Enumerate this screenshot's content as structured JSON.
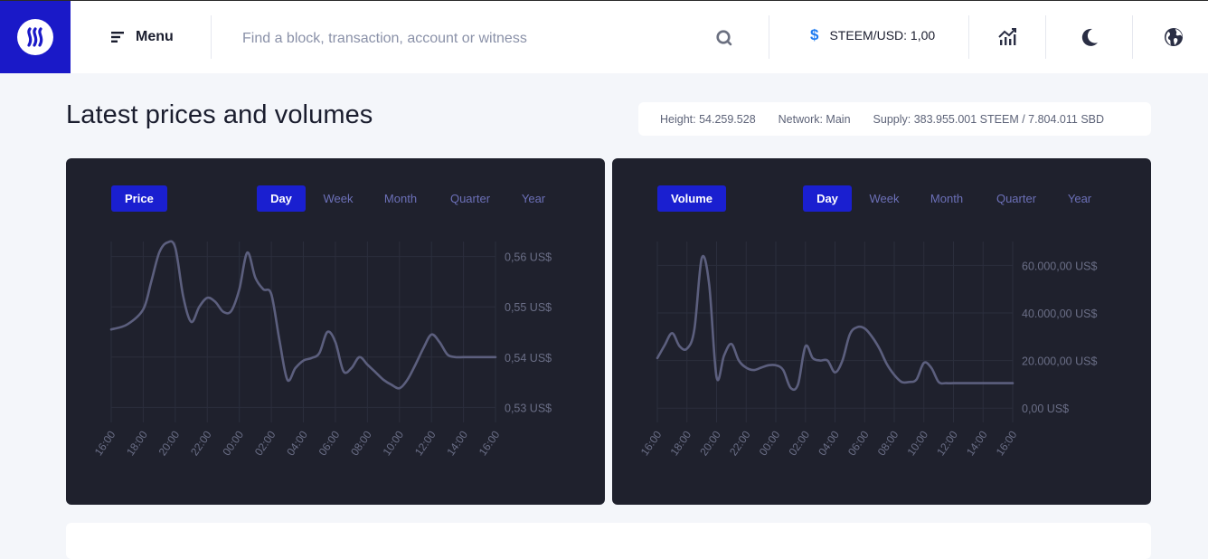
{
  "header": {
    "menu_label": "Menu",
    "search_placeholder": "Find a block, transaction, account or witness",
    "ticker_symbol": "$",
    "ticker_label": "STEEM/USD: 1,00"
  },
  "page": {
    "title": "Latest prices and volumes"
  },
  "network": {
    "height": "Height: 54.259.528",
    "network": "Network: Main",
    "supply": "Supply: 383.955.001 STEEM / 7.804.011 SBD"
  },
  "colors": {
    "accent": "#1a1fd0",
    "card_bg": "#1f212d",
    "line": "#5c5f7e",
    "tab_inactive": "#6c70b8"
  },
  "ranges": [
    "Day",
    "Week",
    "Month",
    "Quarter",
    "Year"
  ],
  "chart_data": [
    {
      "type": "line",
      "title": "Price",
      "active_range": "Day",
      "x_ticks": [
        "16:00",
        "18:00",
        "20:00",
        "22:00",
        "00:00",
        "02:00",
        "04:00",
        "06:00",
        "08:00",
        "10:00",
        "12:00",
        "14:00",
        "16:00"
      ],
      "y_ticks": [
        "0,56 US$",
        "0,55 US$",
        "0,54 US$",
        "0,53 US$"
      ],
      "y_tick_values": [
        0.56,
        0.55,
        0.54,
        0.53
      ],
      "ylim": [
        0.527,
        0.563
      ],
      "x": [
        0,
        0.5,
        1,
        1.25,
        1.5,
        1.75,
        2,
        2.25,
        2.5,
        2.75,
        3,
        3.25,
        3.5,
        3.75,
        4,
        4.25,
        4.5,
        4.75,
        5,
        5.25,
        5.5,
        5.75,
        6,
        6.25,
        6.5,
        6.75,
        7,
        7.25,
        7.5,
        7.75,
        8,
        8.25,
        8.5,
        8.75,
        9,
        9.25,
        9.5,
        9.75,
        10,
        10.25,
        10.5,
        10.75,
        11,
        11.25,
        11.5,
        11.75,
        12
      ],
      "values": [
        0.5455,
        0.5465,
        0.5495,
        0.555,
        0.5608,
        0.5628,
        0.5618,
        0.552,
        0.547,
        0.55,
        0.5518,
        0.551,
        0.549,
        0.5492,
        0.5535,
        0.5608,
        0.5558,
        0.5535,
        0.5525,
        0.5435,
        0.5355,
        0.5378,
        0.5393,
        0.5398,
        0.5408,
        0.545,
        0.543,
        0.5372,
        0.5378,
        0.54,
        0.5385,
        0.537,
        0.5355,
        0.5345,
        0.5338,
        0.5355,
        0.5385,
        0.5418,
        0.5445,
        0.543,
        0.5405,
        0.54,
        0.54,
        0.54,
        0.54,
        0.54,
        0.54
      ]
    },
    {
      "type": "line",
      "title": "Volume",
      "active_range": "Day",
      "x_ticks": [
        "16:00",
        "18:00",
        "20:00",
        "22:00",
        "00:00",
        "02:00",
        "04:00",
        "06:00",
        "08:00",
        "10:00",
        "12:00",
        "14:00",
        "16:00"
      ],
      "y_ticks": [
        "60.000,00 US$",
        "40.000,00 US$",
        "20.000,00 US$",
        "0,00 US$"
      ],
      "y_tick_values": [
        60000,
        40000,
        20000,
        0
      ],
      "ylim": [
        -6000,
        70000
      ],
      "x": [
        0,
        0.25,
        0.5,
        0.75,
        1,
        1.25,
        1.5,
        1.75,
        2,
        2.25,
        2.5,
        2.75,
        3,
        3.25,
        3.5,
        3.75,
        4,
        4.25,
        4.5,
        4.75,
        5,
        5.25,
        5.5,
        5.75,
        6,
        6.25,
        6.5,
        6.75,
        7,
        7.25,
        7.5,
        7.75,
        8,
        8.25,
        8.5,
        8.75,
        9,
        9.25,
        9.5,
        9.75,
        10,
        10.25,
        10.5,
        10.75,
        11,
        11.25,
        11.5,
        11.75,
        12
      ],
      "values": [
        21000,
        26500,
        31500,
        26000,
        25000,
        33000,
        63000,
        52000,
        13000,
        22000,
        27000,
        20000,
        17000,
        16000,
        17000,
        18000,
        18000,
        16000,
        8500,
        10000,
        26000,
        21000,
        20000,
        20000,
        15000,
        20000,
        31000,
        34000,
        33500,
        30000,
        25000,
        18500,
        14000,
        11000,
        11000,
        12000,
        19000,
        17000,
        11000,
        10500,
        10500,
        10500,
        10500,
        10500,
        10500,
        10500,
        10500,
        10500,
        10500
      ]
    }
  ]
}
